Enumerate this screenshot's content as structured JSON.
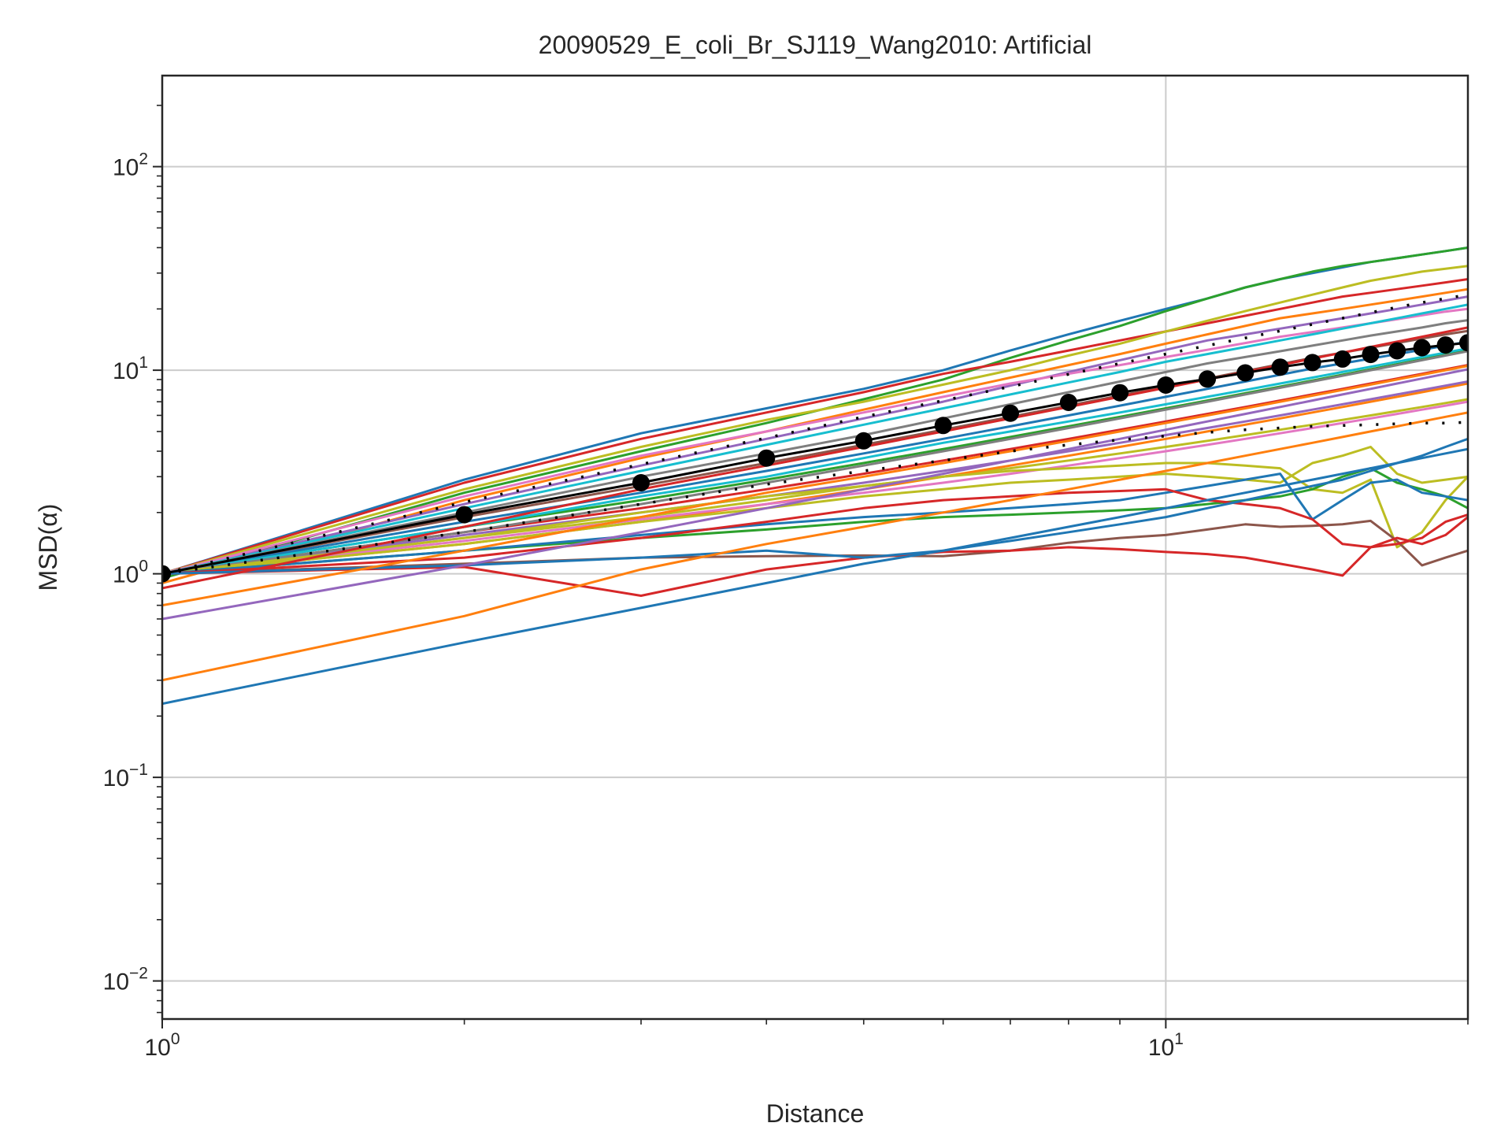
{
  "chart_data": {
    "type": "line",
    "title": "20090529_E_coli_Br_SJ119_Wang2010: Artificial",
    "xlabel": "Distance",
    "ylabel": "MSD(α)",
    "xscale": "log",
    "yscale": "log",
    "xlim": [
      1,
      20
    ],
    "ylim": [
      0.0065,
      280
    ],
    "grid": true,
    "x_ticks": [
      {
        "value": 1,
        "base": "10",
        "exp": "0"
      },
      {
        "value": 10,
        "base": "10",
        "exp": "1"
      }
    ],
    "y_ticks": [
      {
        "value": 0.01,
        "base": "10",
        "exp": "−2"
      },
      {
        "value": 0.1,
        "base": "10",
        "exp": "−1"
      },
      {
        "value": 1,
        "base": "10",
        "exp": "0"
      },
      {
        "value": 10,
        "base": "10",
        "exp": "1"
      },
      {
        "value": 100,
        "base": "10",
        "exp": "2"
      }
    ],
    "x": [
      1,
      2,
      3,
      4,
      5,
      6,
      7,
      8,
      9,
      10,
      11,
      12,
      13,
      14,
      15,
      16,
      17,
      18,
      19,
      20
    ],
    "series_colors": [
      "#1f77b4",
      "#ff7f0e",
      "#2ca02c",
      "#d62728",
      "#9467bd",
      "#8c564b",
      "#e377c2",
      "#7f7f7f",
      "#bcbd22",
      "#17becf"
    ],
    "series": [
      {
        "color": "#1f77b4",
        "values": [
          1.0,
          2.9,
          4.9,
          6.5,
          8.1,
          10.0,
          12.5,
          15.0,
          17.5,
          20.0,
          22.5,
          25.5,
          28.0,
          30.0,
          32.0,
          34.0,
          35.5,
          37.0,
          38.5,
          40.0
        ]
      },
      {
        "color": "#2ca02c",
        "values": [
          0.95,
          2.5,
          4.0,
          5.5,
          7.2,
          9.0,
          11.5,
          14.0,
          16.5,
          19.5,
          22.5,
          25.5,
          28.0,
          30.5,
          32.5,
          34.0,
          35.5,
          37.0,
          38.5,
          40.0
        ]
      },
      {
        "color": "#d62728",
        "values": [
          1.0,
          2.8,
          4.6,
          6.2,
          7.8,
          9.6,
          11.0,
          12.5,
          14.0,
          15.5,
          17.0,
          18.5,
          20.0,
          21.5,
          23.0,
          24.0,
          25.0,
          26.0,
          27.0,
          28.0
        ]
      },
      {
        "color": "#bcbd22",
        "values": [
          1.0,
          2.6,
          4.2,
          5.7,
          7.0,
          8.5,
          10.0,
          11.8,
          13.5,
          15.5,
          17.5,
          19.5,
          21.5,
          23.5,
          25.5,
          27.5,
          29.0,
          30.5,
          31.5,
          32.5
        ]
      },
      {
        "color": "#ff7f0e",
        "values": [
          0.9,
          2.3,
          3.7,
          5.0,
          6.4,
          7.8,
          9.2,
          10.6,
          12.0,
          13.5,
          15.0,
          16.5,
          18.0,
          19.0,
          20.0,
          21.0,
          22.0,
          23.0,
          24.0,
          25.0
        ]
      },
      {
        "color": "#9467bd",
        "values": [
          1.0,
          2.2,
          3.4,
          4.6,
          5.8,
          7.0,
          8.4,
          9.8,
          11.2,
          12.6,
          14.0,
          15.0,
          16.0,
          17.0,
          18.0,
          19.0,
          20.0,
          21.0,
          22.0,
          23.0
        ]
      },
      {
        "color": "#e377c2",
        "values": [
          1.0,
          2.4,
          3.8,
          5.0,
          6.2,
          7.4,
          8.6,
          9.6,
          10.6,
          11.6,
          12.6,
          13.6,
          14.6,
          15.4,
          16.2,
          17.0,
          17.8,
          18.6,
          19.4,
          20.0
        ]
      },
      {
        "color": "#17becf",
        "values": [
          1.0,
          2.1,
          3.2,
          4.3,
          5.4,
          6.5,
          7.6,
          8.7,
          9.8,
          11.0,
          12.0,
          13.0,
          14.0,
          15.0,
          16.0,
          17.0,
          18.0,
          19.0,
          20.0,
          21.0
        ]
      },
      {
        "color": "#7f7f7f",
        "values": [
          1.0,
          2.0,
          3.0,
          3.9,
          4.8,
          5.8,
          6.8,
          7.8,
          8.8,
          9.8,
          10.8,
          11.6,
          12.4,
          13.2,
          14.0,
          14.8,
          15.5,
          16.2,
          17.0,
          17.6
        ]
      },
      {
        "color": "#8c564b",
        "values": [
          1.0,
          1.9,
          2.7,
          3.5,
          4.3,
          5.1,
          5.9,
          6.7,
          7.5,
          8.3,
          9.1,
          9.9,
          10.7,
          11.5,
          12.2,
          12.9,
          13.6,
          14.3,
          15.0,
          15.6
        ]
      },
      {
        "color": "#1f77b4",
        "values": [
          1.0,
          1.8,
          2.5,
          3.2,
          3.9,
          4.6,
          5.3,
          6.0,
          6.7,
          7.4,
          8.1,
          8.8,
          9.5,
          10.2,
          10.8,
          11.4,
          12.0,
          12.6,
          13.2,
          13.8
        ]
      },
      {
        "color": "#2ca02c",
        "values": [
          1.0,
          1.7,
          2.3,
          2.9,
          3.5,
          4.1,
          4.7,
          5.3,
          5.9,
          6.5,
          7.1,
          7.7,
          8.3,
          8.9,
          9.5,
          10.1,
          10.7,
          11.3,
          11.9,
          12.5
        ]
      },
      {
        "color": "#d62728",
        "values": [
          1.0,
          1.6,
          2.1,
          2.6,
          3.1,
          3.6,
          4.1,
          4.6,
          5.1,
          5.6,
          6.1,
          6.6,
          7.1,
          7.6,
          8.1,
          8.6,
          9.1,
          9.6,
          10.1,
          10.6
        ]
      },
      {
        "color": "#bcbd22",
        "values": [
          1.0,
          1.5,
          1.9,
          2.3,
          2.7,
          3.0,
          3.3,
          3.6,
          3.9,
          4.2,
          4.5,
          4.8,
          5.1,
          5.4,
          5.7,
          6.0,
          6.3,
          6.6,
          6.9,
          7.2
        ]
      },
      {
        "color": "#ff7f0e",
        "values": [
          1.0,
          1.4,
          1.8,
          2.2,
          2.6,
          3.0,
          3.4,
          3.8,
          4.2,
          4.6,
          5.0,
          5.4,
          5.8,
          6.2,
          6.6,
          7.0,
          7.4,
          7.8,
          8.2,
          8.6
        ]
      },
      {
        "color": "#9467bd",
        "values": [
          1.0,
          1.55,
          2.0,
          2.4,
          2.8,
          3.2,
          3.6,
          4.0,
          4.4,
          4.8,
          5.2,
          5.6,
          6.0,
          6.4,
          6.8,
          7.2,
          7.6,
          8.0,
          8.4,
          8.8
        ]
      },
      {
        "color": "#e377c2",
        "values": [
          1.0,
          1.45,
          1.85,
          2.2,
          2.5,
          2.8,
          3.1,
          3.4,
          3.7,
          4.0,
          4.3,
          4.6,
          4.9,
          5.2,
          5.5,
          5.8,
          6.1,
          6.4,
          6.7,
          7.0
        ]
      },
      {
        "color": "#17becf",
        "values": [
          1.0,
          1.7,
          2.4,
          3.0,
          3.7,
          4.4,
          5.0,
          5.6,
          6.2,
          6.8,
          7.4,
          8.0,
          8.6,
          9.2,
          9.8,
          10.4,
          11.0,
          11.6,
          12.2,
          12.8
        ]
      },
      {
        "color": "#7f7f7f",
        "values": [
          1.0,
          1.6,
          2.2,
          2.8,
          3.4,
          4.0,
          4.6,
          5.2,
          5.8,
          6.4,
          7.0,
          7.6,
          8.2,
          8.8,
          9.4,
          10.0,
          10.6,
          11.2,
          11.8,
          12.4
        ]
      },
      {
        "color": "#bcbd22",
        "values": [
          1.0,
          1.5,
          2.0,
          2.4,
          2.7,
          3.0,
          3.2,
          3.3,
          3.4,
          3.5,
          3.5,
          3.4,
          3.3,
          2.6,
          2.5,
          2.9,
          1.35,
          1.6,
          2.3,
          3.0
        ]
      },
      {
        "color": "#bcbd22",
        "values": [
          1.0,
          1.4,
          1.8,
          2.1,
          2.4,
          2.6,
          2.8,
          2.9,
          3.0,
          3.1,
          3.0,
          2.9,
          2.8,
          3.5,
          3.8,
          4.2,
          3.1,
          2.8,
          2.9,
          3.0
        ]
      },
      {
        "color": "#2ca02c",
        "values": [
          1.0,
          1.3,
          1.5,
          1.65,
          1.8,
          1.9,
          1.95,
          2.0,
          2.05,
          2.1,
          2.2,
          2.3,
          2.4,
          2.6,
          3.0,
          3.3,
          2.8,
          2.6,
          2.4,
          2.1
        ]
      },
      {
        "color": "#1f77b4",
        "values": [
          1.0,
          1.3,
          1.55,
          1.75,
          1.9,
          2.0,
          2.1,
          2.2,
          2.3,
          2.5,
          2.7,
          2.9,
          3.1,
          1.85,
          2.3,
          2.8,
          2.9,
          2.5,
          2.4,
          2.3
        ]
      },
      {
        "color": "#8c564b",
        "values": [
          1.0,
          1.12,
          1.2,
          1.22,
          1.23,
          1.22,
          1.3,
          1.42,
          1.5,
          1.55,
          1.65,
          1.75,
          1.7,
          1.72,
          1.75,
          1.82,
          1.45,
          1.1,
          1.2,
          1.3
        ]
      },
      {
        "color": "#d62728",
        "values": [
          1.0,
          1.08,
          0.78,
          1.05,
          1.2,
          1.28,
          1.3,
          1.35,
          1.32,
          1.28,
          1.25,
          1.2,
          1.12,
          1.05,
          0.98,
          1.35,
          1.4,
          1.5,
          1.8,
          1.95
        ]
      },
      {
        "color": "#d62728",
        "values": [
          1.0,
          1.2,
          1.5,
          1.8,
          2.1,
          2.3,
          2.4,
          2.5,
          2.55,
          2.6,
          2.3,
          2.2,
          2.1,
          1.85,
          1.4,
          1.35,
          1.5,
          1.4,
          1.55,
          1.9
        ]
      },
      {
        "color": "#1f77b4",
        "values": [
          1.0,
          1.1,
          1.2,
          1.3,
          1.2,
          1.3,
          1.45,
          1.6,
          1.75,
          1.9,
          2.1,
          2.3,
          2.5,
          2.7,
          2.9,
          3.2,
          3.5,
          3.8,
          4.2,
          4.6
        ]
      },
      {
        "color": "#ff7f0e",
        "values": [
          0.3,
          0.62,
          1.05,
          1.4,
          1.7,
          2.0,
          2.3,
          2.6,
          2.9,
          3.2,
          3.5,
          3.8,
          4.1,
          4.4,
          4.7,
          5.0,
          5.3,
          5.6,
          5.9,
          6.2
        ]
      },
      {
        "color": "#1f77b4",
        "values": [
          0.23,
          0.46,
          0.68,
          0.9,
          1.12,
          1.3,
          1.5,
          1.7,
          1.9,
          2.1,
          2.3,
          2.5,
          2.7,
          2.9,
          3.1,
          3.3,
          3.5,
          3.7,
          3.9,
          4.1
        ]
      },
      {
        "color": "#ff7f0e",
        "values": [
          0.7,
          1.3,
          1.9,
          2.5,
          3.0,
          3.5,
          4.0,
          4.5,
          5.0,
          5.5,
          6.0,
          6.5,
          7.0,
          7.5,
          8.0,
          8.5,
          9.0,
          9.5,
          10.0,
          10.5
        ]
      },
      {
        "color": "#9467bd",
        "values": [
          0.6,
          1.1,
          1.6,
          2.1,
          2.6,
          3.1,
          3.6,
          4.1,
          4.6,
          5.1,
          5.6,
          6.1,
          6.6,
          7.1,
          7.6,
          8.1,
          8.6,
          9.1,
          9.6,
          10.1
        ]
      },
      {
        "color": "#d62728",
        "values": [
          0.85,
          1.7,
          2.6,
          3.4,
          4.2,
          5.0,
          5.8,
          6.6,
          7.4,
          8.2,
          9.0,
          9.8,
          10.6,
          11.4,
          12.2,
          13.0,
          13.8,
          14.6,
          15.4,
          16.2
        ]
      }
    ],
    "mean": {
      "color": "#000000",
      "values": [
        1.0,
        1.95,
        2.8,
        3.7,
        4.5,
        5.35,
        6.15,
        6.95,
        7.75,
        8.45,
        9.05,
        9.7,
        10.35,
        10.9,
        11.35,
        11.95,
        12.45,
        12.9,
        13.3,
        13.65
      ]
    },
    "upper": [
      1.0,
      2.25,
      3.45,
      4.65,
      5.9,
      7.1,
      8.3,
      9.55,
      10.8,
      12.0,
      13.2,
      14.4,
      15.6,
      16.8,
      18.0,
      19.2,
      20.4,
      21.5,
      22.5,
      23.5
    ],
    "lower": [
      1.0,
      1.6,
      2.2,
      2.75,
      3.2,
      3.6,
      4.0,
      4.3,
      4.55,
      4.75,
      4.95,
      5.1,
      5.2,
      5.3,
      5.35,
      5.4,
      5.45,
      5.5,
      5.5,
      5.55
    ]
  }
}
